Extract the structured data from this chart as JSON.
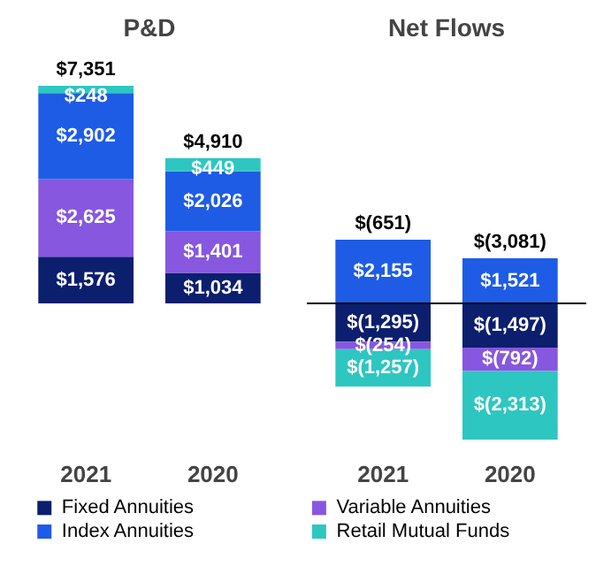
{
  "chart_data": [
    {
      "type": "bar",
      "title": "P&D",
      "categories": [
        "2021",
        "2020"
      ],
      "stacked": true,
      "data_labels": true,
      "legend": "bottom",
      "series": [
        {
          "name": "Fixed Annuities",
          "color": "#0b1f6e",
          "values": [
            1576,
            1034
          ],
          "value_labels": [
            "$1,576",
            "$1,034"
          ]
        },
        {
          "name": "Variable Annuities",
          "color": "#8757e0",
          "values": [
            2625,
            1401
          ],
          "value_labels": [
            "$2,625",
            "$1,401"
          ]
        },
        {
          "name": "Index Annuities",
          "color": "#1e5ce6",
          "values": [
            2902,
            2026
          ],
          "value_labels": [
            "$2,902",
            "$2,026"
          ]
        },
        {
          "name": "Retail Mutual Funds",
          "color": "#2ec6c0",
          "values": [
            248,
            449
          ],
          "value_labels": [
            "$248",
            "$449"
          ]
        }
      ],
      "totals": [
        "$7,351",
        "$4,910"
      ]
    },
    {
      "type": "bar",
      "title": "Net Flows",
      "categories": [
        "2021",
        "2020"
      ],
      "stacked": true,
      "data_labels": true,
      "legend": "bottom",
      "ref_lines": [
        {
          "axis": "y",
          "value": 0,
          "color": "#000000"
        }
      ],
      "series": [
        {
          "name": "Fixed Annuities",
          "color": "#0b1f6e",
          "values": [
            -1295,
            -1497
          ],
          "value_labels": [
            "$(1,295)",
            "$(1,497)"
          ]
        },
        {
          "name": "Variable Annuities",
          "color": "#8757e0",
          "values": [
            -254,
            -792
          ],
          "value_labels": [
            "$(254)",
            "$(792)"
          ]
        },
        {
          "name": "Index Annuities",
          "color": "#1e5ce6",
          "values": [
            2155,
            1521
          ],
          "value_labels": [
            "$2,155",
            "$1,521"
          ]
        },
        {
          "name": "Retail Mutual Funds",
          "color": "#2ec6c0",
          "values": [
            -1257,
            -2313
          ],
          "value_labels": [
            "$(1,257)",
            "$(2,313)"
          ]
        }
      ],
      "totals": [
        "$(651)",
        "$(3,081)"
      ]
    }
  ]
}
